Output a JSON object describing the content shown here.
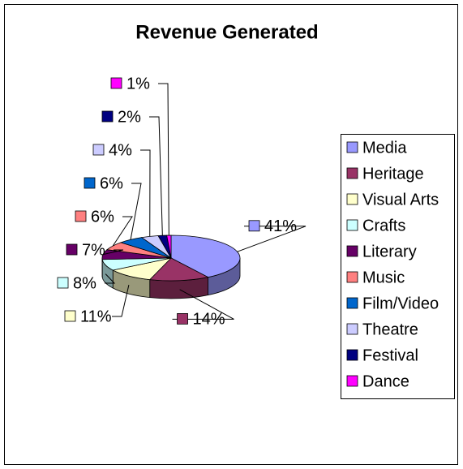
{
  "chart_data": {
    "type": "pie",
    "title": "Revenue Generated",
    "categories": [
      "Media",
      "Heritage",
      "Visual Arts",
      "Crafts",
      "Literary",
      "Music",
      "Film/Video",
      "Theatre",
      "Festival",
      "Dance"
    ],
    "values": [
      41,
      14,
      11,
      8,
      7,
      6,
      6,
      4,
      2,
      1
    ],
    "value_labels": [
      "41%",
      "14%",
      "11%",
      "8%",
      "7%",
      "6%",
      "6%",
      "4%",
      "2%",
      "1%"
    ],
    "colors": [
      "#9999ff",
      "#993366",
      "#ffffcc",
      "#ccffff",
      "#660066",
      "#ff8080",
      "#0066cc",
      "#ccccff",
      "#000080",
      "#ff00ff"
    ],
    "legend": "right"
  }
}
